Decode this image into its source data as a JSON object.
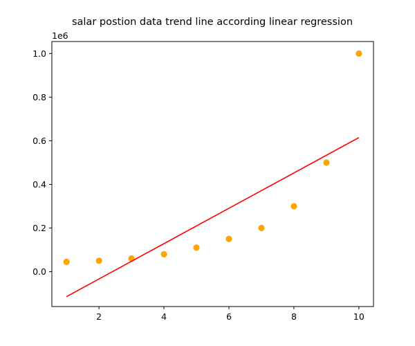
{
  "chart_data": {
    "type": "scatter",
    "title": "salar postion data trend line according linear regression",
    "xlabel": "",
    "ylabel": "",
    "y_offset_label": "1e6",
    "xlim": [
      0.55,
      10.45
    ],
    "ylim": [
      -0.16,
      1.055
    ],
    "x_ticks": [
      2,
      4,
      6,
      8,
      10
    ],
    "y_ticks": [
      0.0,
      0.2,
      0.4,
      0.6,
      0.8,
      1.0
    ],
    "x_tick_labels": [
      "2",
      "4",
      "6",
      "8",
      "10"
    ],
    "y_tick_labels": [
      "0.0",
      "0.2",
      "0.4",
      "0.6",
      "0.8",
      "1.0"
    ],
    "grid": false,
    "series": [
      {
        "kind": "scatter",
        "color": "#ffa500",
        "x": [
          1,
          2,
          3,
          4,
          5,
          6,
          7,
          8,
          9,
          10
        ],
        "y": [
          0.045,
          0.05,
          0.06,
          0.08,
          0.11,
          0.15,
          0.2,
          0.3,
          0.5,
          1.0
        ]
      },
      {
        "kind": "line",
        "color": "#ff0000",
        "x": [
          1,
          10
        ],
        "y": [
          -0.1145,
          0.6145
        ]
      }
    ]
  }
}
